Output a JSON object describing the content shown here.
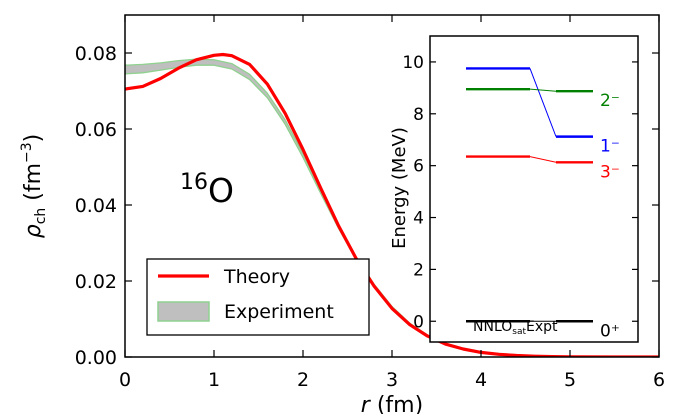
{
  "chart_data": [
    {
      "type": "line",
      "title": "",
      "annotation": {
        "mass_number": "16",
        "element": "O"
      },
      "xlabel": {
        "var": "r",
        "unit": "(fm)"
      },
      "ylabel": {
        "var": "ρ",
        "sub": "ch",
        "unit_open": "(fm",
        "unit_exp": "−3",
        "unit_close": ")"
      },
      "xlim": [
        0,
        6
      ],
      "ylim": [
        0,
        0.09
      ],
      "xticks": [
        0,
        1,
        2,
        3,
        4,
        5,
        6
      ],
      "yticks": [
        0.0,
        0.02,
        0.04,
        0.06,
        0.08
      ],
      "ytick_labels": [
        "0.00",
        "0.02",
        "0.04",
        "0.06",
        "0.08"
      ],
      "grid": false,
      "legend": {
        "placement": "lower-left",
        "entries": [
          {
            "label": "Theory",
            "color": "#ff0000",
            "style": "line"
          },
          {
            "label": "Experiment",
            "color": "#8fd18f",
            "fill": "#bfbfbf",
            "style": "band"
          }
        ]
      },
      "series": [
        {
          "name": "Theory",
          "color": "#ff0000",
          "x": [
            0,
            0.2,
            0.4,
            0.6,
            0.8,
            1.0,
            1.1,
            1.2,
            1.4,
            1.6,
            1.8,
            2.0,
            2.2,
            2.4,
            2.6,
            2.8,
            3.0,
            3.2,
            3.4,
            3.6,
            3.8,
            4.0,
            4.2,
            4.4,
            4.6,
            4.8,
            5.0,
            5.5,
            6.0
          ],
          "y": [
            0.0705,
            0.0712,
            0.0733,
            0.076,
            0.0782,
            0.0794,
            0.0796,
            0.0793,
            0.077,
            0.0718,
            0.0641,
            0.0546,
            0.0444,
            0.0345,
            0.0258,
            0.0186,
            0.0128,
            0.0085,
            0.0055,
            0.0034,
            0.0021,
            0.0012,
            0.0007,
            0.0004,
            0.0002,
            0.0001,
            5e-05,
            0.0,
            0.0
          ]
        },
        {
          "name": "Experiment",
          "color": "#8fd18f",
          "fill": "#bfbfbf",
          "x": [
            0,
            0.2,
            0.4,
            0.6,
            0.8,
            1.0,
            1.2,
            1.4,
            1.6,
            1.8,
            2.0,
            2.2,
            2.4,
            2.6,
            2.8,
            3.0,
            3.2,
            3.4,
            3.6,
            3.8,
            4.0,
            4.5,
            5.0,
            6.0
          ],
          "y_low": [
            0.0745,
            0.0748,
            0.0755,
            0.0762,
            0.0768,
            0.0768,
            0.0758,
            0.073,
            0.0682,
            0.0612,
            0.0525,
            0.043,
            0.0338,
            0.0255,
            0.0185,
            0.0128,
            0.0085,
            0.0055,
            0.0034,
            0.0021,
            0.0012,
            0.0003,
            0.0001,
            0.0
          ],
          "y_high": [
            0.0768,
            0.077,
            0.0774,
            0.078,
            0.0784,
            0.0782,
            0.0772,
            0.0744,
            0.0694,
            0.0624,
            0.0535,
            0.0438,
            0.0346,
            0.0262,
            0.0191,
            0.0133,
            0.0089,
            0.0058,
            0.0036,
            0.0022,
            0.0013,
            0.0004,
            0.0001,
            0.0
          ]
        }
      ]
    },
    {
      "type": "level_scheme",
      "ylabel": "Energy (MeV)",
      "ylim": [
        -0.8,
        11
      ],
      "yticks": [
        0,
        2,
        4,
        6,
        8,
        10
      ],
      "ytick_labels": [
        "0",
        "2",
        "4",
        "6",
        "8",
        "10"
      ],
      "grid": false,
      "columns": [
        {
          "label": "NNLO",
          "sub": "sat"
        },
        {
          "label": "Expt"
        }
      ],
      "levels": [
        {
          "name": "0⁺",
          "color": "#000000",
          "theory": 0.0,
          "expt": 0.0
        },
        {
          "name": "3⁻",
          "color": "#ff0000",
          "theory": 6.35,
          "expt": 6.13
        },
        {
          "name": "1⁻",
          "color": "#0000ff",
          "theory": 9.75,
          "expt": 7.12
        },
        {
          "name": "2⁻",
          "color": "#008000",
          "theory": 8.95,
          "expt": 8.87
        }
      ]
    }
  ]
}
